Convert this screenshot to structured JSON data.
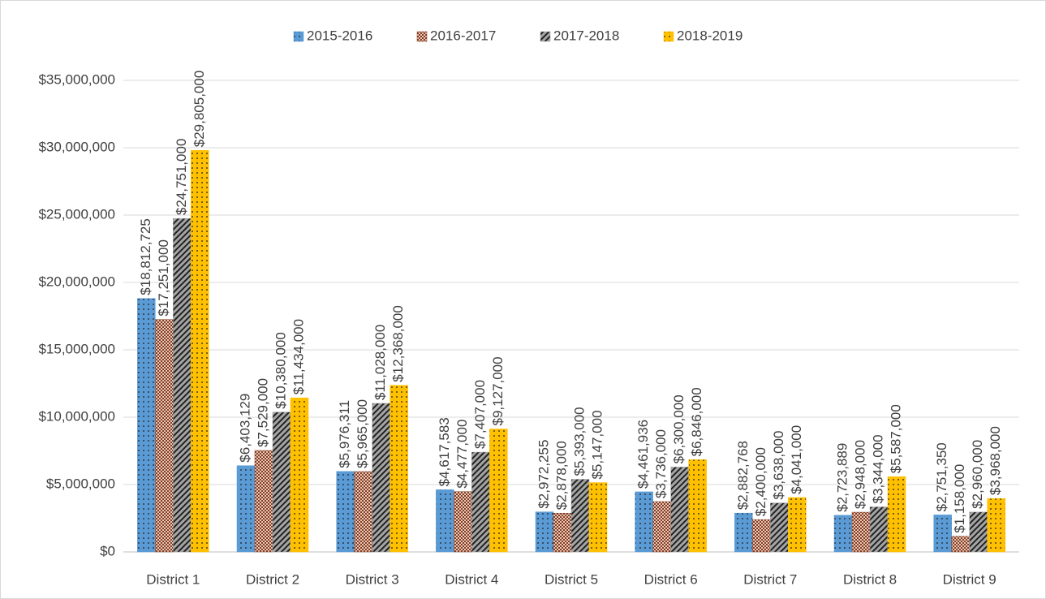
{
  "chart_data": {
    "type": "bar",
    "categories": [
      "District 1",
      "District 2",
      "District 3",
      "District 4",
      "District 5",
      "District 6",
      "District 7",
      "District 8",
      "District 9"
    ],
    "series": [
      {
        "name": "2015-2016",
        "color": "#5b9bd5",
        "values": [
          18812725,
          6403129,
          5976311,
          4617583,
          2972255,
          4461936,
          2882768,
          2723889,
          2751350
        ],
        "value_labels": [
          "$18,812,725",
          "$6,403,129",
          "$5,976,311",
          "$4,617,583",
          "$2,972,255",
          "$4,461,936",
          "$2,882,768",
          "$2,723,889",
          "$2,751,350"
        ]
      },
      {
        "name": "2016-2017",
        "color": "#843c22",
        "values": [
          17251000,
          7529000,
          5965000,
          4477000,
          2878000,
          3736000,
          2400000,
          2948000,
          1158000
        ],
        "value_labels": [
          "$17,251,000",
          "$7,529,000",
          "$5,965,000",
          "$4,477,000",
          "$2,878,000",
          "$3,736,000",
          "$2,400,000",
          "$2,948,000",
          "$1,158,000"
        ]
      },
      {
        "name": "2017-2018",
        "color": "#a5a5a5",
        "values": [
          24751000,
          10380000,
          11028000,
          7407000,
          5393000,
          6300000,
          3638000,
          3344000,
          2960000
        ],
        "value_labels": [
          "$24,751,000",
          "$10,380,000",
          "$11,028,000",
          "$7,407,000",
          "$5,393,000",
          "$6,300,000",
          "$3,638,000",
          "$3,344,000",
          "$2,960,000"
        ]
      },
      {
        "name": "2018-2019",
        "color": "#ffc000",
        "values": [
          29805000,
          11434000,
          12368000,
          9127000,
          5147000,
          6846000,
          4041000,
          5587000,
          3968000
        ],
        "value_labels": [
          "$29,805,000",
          "$11,434,000",
          "$12,368,000",
          "$9,127,000",
          "$5,147,000",
          "$6,846,000",
          "$4,041,000",
          "$5,587,000",
          "$3,968,000"
        ]
      }
    ],
    "ylim": [
      0,
      35000000
    ],
    "yticks": [
      {
        "value": 0,
        "label": "$0"
      },
      {
        "value": 5000000,
        "label": "$5,000,000"
      },
      {
        "value": 10000000,
        "label": "$10,000,000"
      },
      {
        "value": 15000000,
        "label": "$15,000,000"
      },
      {
        "value": 20000000,
        "label": "$20,000,000"
      },
      {
        "value": 25000000,
        "label": "$25,000,000"
      },
      {
        "value": 30000000,
        "label": "$30,000,000"
      },
      {
        "value": 35000000,
        "label": "$35,000,000"
      }
    ],
    "grid": true,
    "legend": "top"
  }
}
